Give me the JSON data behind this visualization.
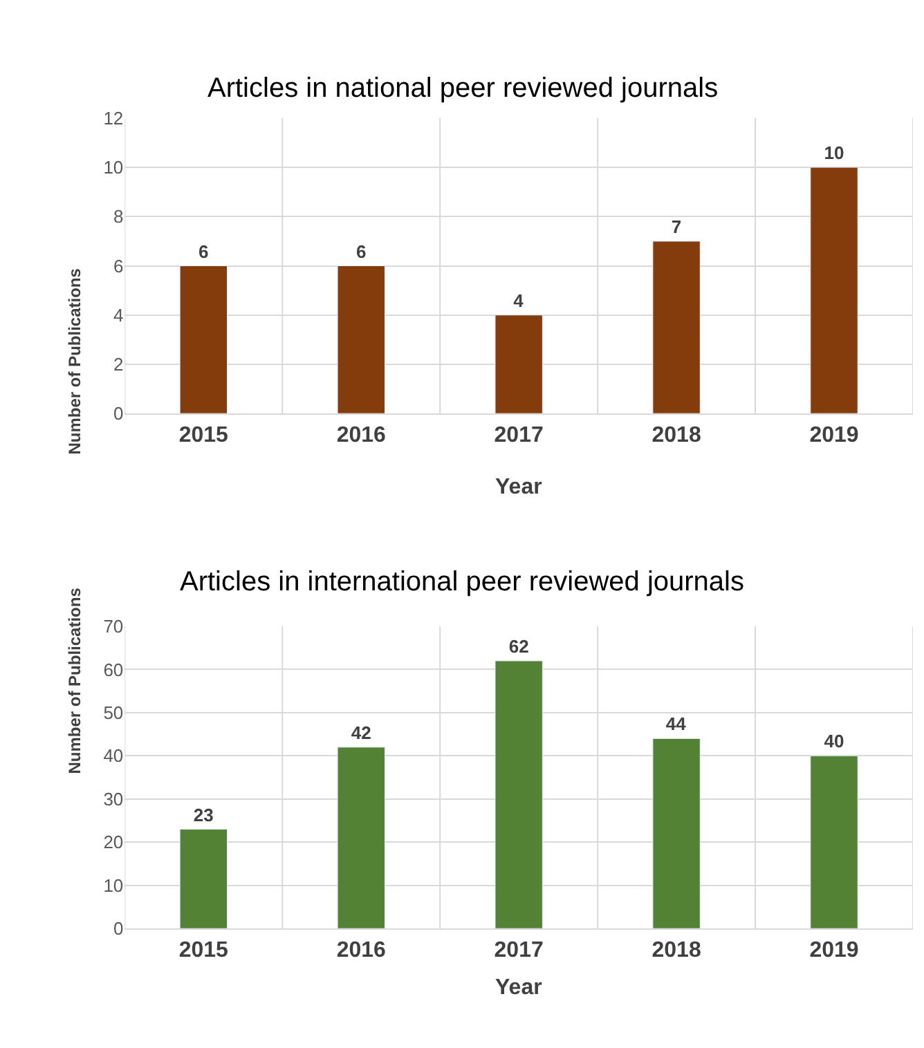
{
  "chart_data": [
    {
      "type": "bar",
      "title": "Articles in national peer reviewed journals",
      "xlabel": "Year",
      "ylabel": "Number of Publications",
      "categories": [
        "2015",
        "2016",
        "2017",
        "2018",
        "2019"
      ],
      "values": [
        6,
        6,
        4,
        7,
        10
      ],
      "color": "#843c0c",
      "ylim": [
        0,
        12
      ],
      "yticks": [
        0,
        2,
        4,
        6,
        8,
        10,
        12
      ],
      "grid": true,
      "data_labels": true
    },
    {
      "type": "bar",
      "title": "Articles in international peer reviewed journals",
      "xlabel": "Year",
      "ylabel": "Number of Publications",
      "categories": [
        "2015",
        "2016",
        "2017",
        "2018",
        "2019"
      ],
      "values": [
        23,
        42,
        62,
        44,
        40
      ],
      "color": "#548235",
      "ylim": [
        0,
        70
      ],
      "yticks": [
        0,
        10,
        20,
        30,
        40,
        50,
        60,
        70
      ],
      "grid": true,
      "data_labels": true
    }
  ]
}
